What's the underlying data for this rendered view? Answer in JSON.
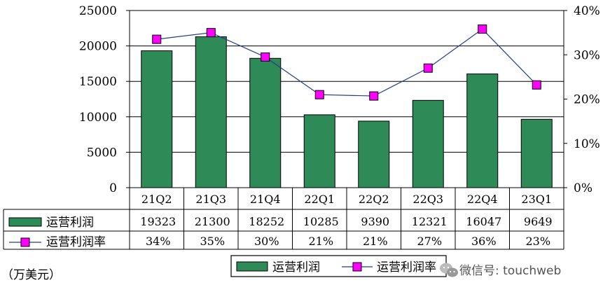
{
  "chart_data": {
    "type": "bar",
    "categories": [
      "21Q2",
      "21Q3",
      "21Q4",
      "22Q1",
      "22Q2",
      "22Q3",
      "22Q4",
      "23Q1"
    ],
    "series": [
      {
        "name": "运营利润",
        "type": "bar",
        "axis": "left",
        "color": "#2E8B57",
        "values": [
          19323,
          21300,
          18252,
          10285,
          9390,
          12321,
          16047,
          9649
        ],
        "labels": [
          "19323",
          "21300",
          "18252",
          "10285",
          "9390",
          "12321",
          "16047",
          "9649"
        ]
      },
      {
        "name": "运营利润率",
        "type": "line",
        "axis": "right",
        "color": "#FF00FF",
        "line_color": "#1F3F8F",
        "values": [
          33.5,
          35.0,
          29.5,
          21.0,
          20.7,
          27.0,
          35.8,
          23.2
        ],
        "labels": [
          "34%",
          "35%",
          "30%",
          "21%",
          "21%",
          "27%",
          "36%",
          "23%"
        ]
      }
    ],
    "y_left": {
      "ylim": [
        0,
        25000
      ],
      "ticks": [
        "25000",
        "20000",
        "15000",
        "10000",
        "5000",
        "0"
      ]
    },
    "y_right": {
      "ylim": [
        0,
        40
      ],
      "ticks": [
        "40%",
        "30%",
        "20%",
        "10%",
        "0%"
      ]
    },
    "grid": true,
    "legend_position": "bottom",
    "unit_label": "（万美元）",
    "data_table": true
  },
  "watermark": {
    "text": "微信号: touchweb"
  }
}
